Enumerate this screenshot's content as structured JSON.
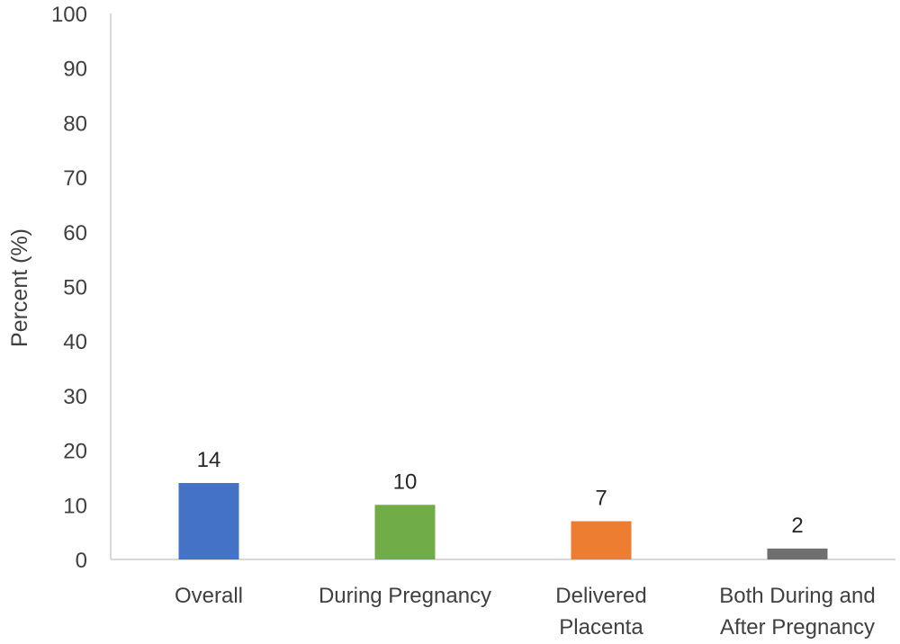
{
  "chart_data": {
    "type": "bar",
    "categories": [
      [
        "Overall"
      ],
      [
        "During Pregnancy"
      ],
      [
        "Delivered",
        "Placenta"
      ],
      [
        "Both During and",
        "After Pregnancy"
      ]
    ],
    "values": [
      14,
      10,
      7,
      2
    ],
    "data_labels": [
      "14",
      "10",
      "7",
      "2"
    ],
    "bar_colors": [
      "#4472c4",
      "#70ad47",
      "#ed7d31",
      "#6f6f6f"
    ],
    "title": "",
    "xlabel": "",
    "ylabel": "Percent (%)",
    "ylim": [
      0,
      100
    ],
    "yticks": [
      "0",
      "10",
      "20",
      "30",
      "40",
      "50",
      "60",
      "70",
      "80",
      "90",
      "100"
    ],
    "grid": false,
    "legend": "none"
  }
}
